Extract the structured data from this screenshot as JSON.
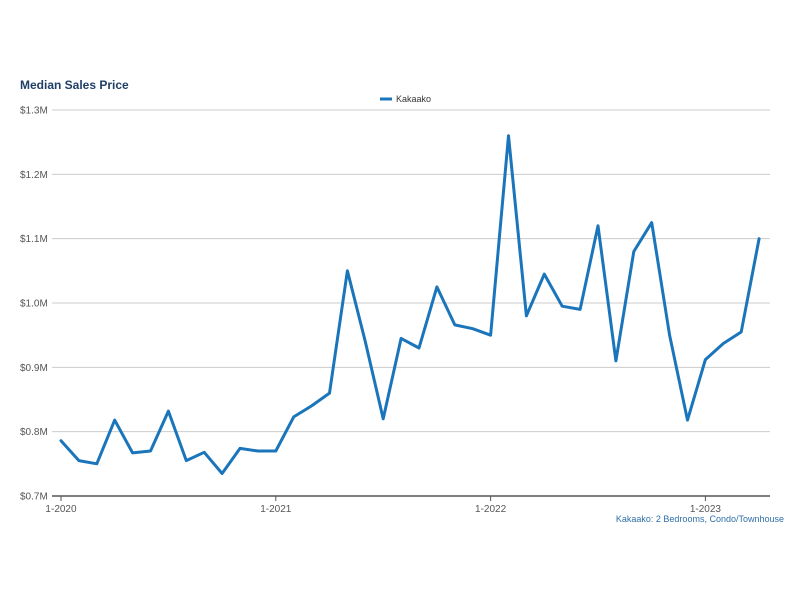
{
  "chart_data": {
    "type": "line",
    "title": "Median Sales Price",
    "caption": "Kakaako: 2 Bedrooms, Condo/Townhouse",
    "xlabel": "",
    "ylabel": "",
    "ylim": [
      0.7,
      1.3
    ],
    "y_ticks": [
      0.7,
      0.8,
      0.9,
      1.0,
      1.1,
      1.2,
      1.3
    ],
    "y_tick_labels": [
      "$0.7M",
      "$0.8M",
      "$0.9M",
      "$1.0M",
      "$1.1M",
      "$1.2M",
      "$1.3M"
    ],
    "x_ticks": [
      0,
      12,
      24,
      36
    ],
    "x_tick_labels": [
      "1-2020",
      "1-2021",
      "1-2022",
      "1-2023"
    ],
    "grid": true,
    "legend_position": "top-center",
    "colors": {
      "series": "#1a75bb",
      "title": "#1f3f66",
      "grid": "#cccccc"
    },
    "series": [
      {
        "name": "Kakaako",
        "x": [
          0,
          1,
          2,
          3,
          4,
          5,
          6,
          7,
          8,
          9,
          10,
          11,
          12,
          13,
          14,
          15,
          16,
          17,
          18,
          19,
          20,
          21,
          22,
          23,
          24,
          25,
          26,
          27,
          28,
          29,
          30,
          31,
          32,
          33,
          34,
          35,
          36,
          37,
          38,
          39
        ],
        "values": [
          0.786,
          0.755,
          0.75,
          0.818,
          0.767,
          0.77,
          0.832,
          0.755,
          0.768,
          0.735,
          0.774,
          0.77,
          0.77,
          0.823,
          0.84,
          0.86,
          1.05,
          0.94,
          0.82,
          0.945,
          0.93,
          1.025,
          0.966,
          0.96,
          0.95,
          1.26,
          0.98,
          1.045,
          0.995,
          0.99,
          1.12,
          0.91,
          1.08,
          1.125,
          0.95,
          0.818,
          0.912,
          0.937,
          0.955,
          1.1
        ]
      }
    ]
  }
}
